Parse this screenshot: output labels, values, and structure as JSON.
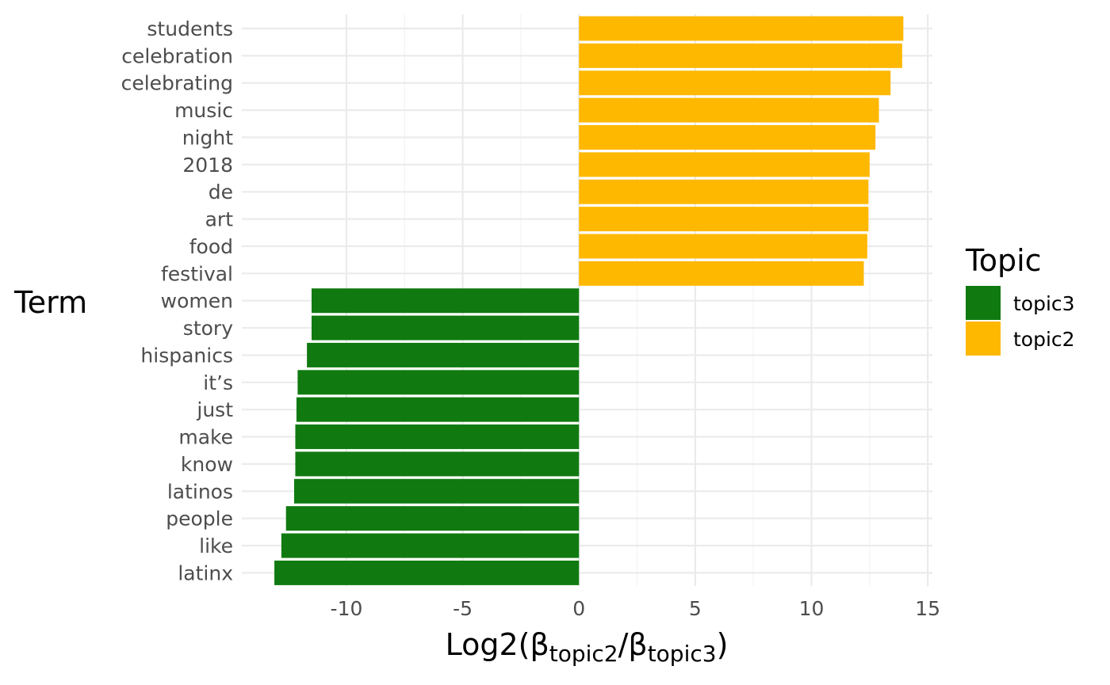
{
  "chart_data": {
    "type": "bar",
    "orientation": "horizontal",
    "categories": [
      "students",
      "celebration",
      "celebrating",
      "music",
      "night",
      "2018",
      "de",
      "art",
      "food",
      "festival",
      "women",
      "story",
      "hispanics",
      "it’s",
      "just",
      "make",
      "know",
      "latinos",
      "people",
      "like",
      "latinx"
    ],
    "values": [
      13.95,
      13.9,
      13.4,
      12.9,
      12.75,
      12.5,
      12.45,
      12.45,
      12.4,
      12.25,
      -11.5,
      -11.5,
      -11.7,
      -12.1,
      -12.15,
      -12.2,
      -12.2,
      -12.25,
      -12.6,
      -12.8,
      -13.1
    ],
    "groups": [
      "topic2",
      "topic2",
      "topic2",
      "topic2",
      "topic2",
      "topic2",
      "topic2",
      "topic2",
      "topic2",
      "topic2",
      "topic3",
      "topic3",
      "topic3",
      "topic3",
      "topic3",
      "topic3",
      "topic3",
      "topic3",
      "topic3",
      "topic3",
      "topic3"
    ],
    "ylabel": "Term",
    "xlabel": {
      "prefix": "Log2(",
      "beta1": "β",
      "sub1": "topic2",
      "slash": "/",
      "beta2": "β",
      "sub2": "topic3",
      "suffix": ")"
    },
    "xlim": [
      -14.5,
      15.2
    ],
    "xticks": [
      -10,
      -5,
      0,
      5,
      10,
      15
    ],
    "xtick_labels": [
      "-10",
      "-5",
      "0",
      "5",
      "10",
      "15"
    ],
    "legend": {
      "title": "Topic",
      "placement": "right",
      "items": [
        {
          "name": "topic3",
          "color": "#107a10"
        },
        {
          "name": "topic2",
          "color": "#ffb800"
        }
      ]
    },
    "colors": {
      "topic3": "#107a10",
      "topic2": "#ffb800"
    },
    "grid": true
  }
}
